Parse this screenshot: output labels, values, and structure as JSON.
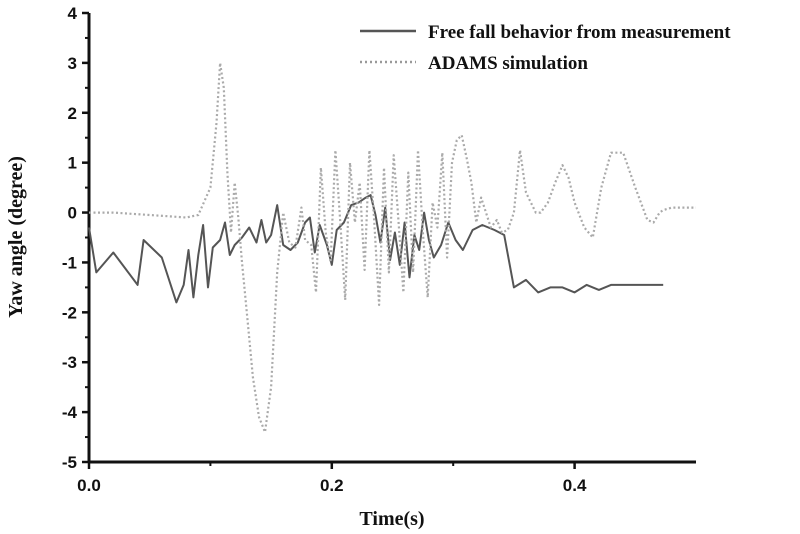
{
  "chart_data": {
    "type": "line",
    "xlabel": "Time(s)",
    "ylabel": "Yaw angle (degree)",
    "xlim": [
      0.0,
      0.5
    ],
    "ylim": [
      -5,
      4
    ],
    "x_ticks": [
      "0.0",
      "0.2",
      "0.4"
    ],
    "y_ticks": [
      "4",
      "3",
      "2",
      "1",
      "0",
      "-1",
      "-2",
      "-3",
      "-4",
      "-5"
    ],
    "grid": false,
    "legend_position": "top-right",
    "series": [
      {
        "name": "Free fall behavior from measurement",
        "style": "solid",
        "color": "#555555",
        "x": [
          0.0,
          0.006,
          0.02,
          0.04,
          0.045,
          0.06,
          0.072,
          0.078,
          0.082,
          0.086,
          0.09,
          0.094,
          0.098,
          0.102,
          0.108,
          0.112,
          0.116,
          0.12,
          0.126,
          0.132,
          0.138,
          0.142,
          0.146,
          0.15,
          0.155,
          0.16,
          0.166,
          0.172,
          0.178,
          0.182,
          0.186,
          0.19,
          0.196,
          0.2,
          0.204,
          0.21,
          0.216,
          0.222,
          0.228,
          0.232,
          0.236,
          0.24,
          0.244,
          0.248,
          0.252,
          0.256,
          0.26,
          0.264,
          0.268,
          0.272,
          0.276,
          0.28,
          0.284,
          0.29,
          0.296,
          0.302,
          0.308,
          0.316,
          0.324,
          0.334,
          0.342,
          0.35,
          0.36,
          0.37,
          0.38,
          0.39,
          0.4,
          0.41,
          0.42,
          0.43,
          0.44,
          0.45,
          0.46,
          0.47,
          0.473
        ],
        "y": [
          -0.3,
          -1.2,
          -0.8,
          -1.45,
          -0.55,
          -0.9,
          -1.8,
          -1.45,
          -0.75,
          -1.7,
          -0.85,
          -0.25,
          -1.5,
          -0.7,
          -0.55,
          -0.2,
          -0.85,
          -0.65,
          -0.5,
          -0.3,
          -0.6,
          -0.15,
          -0.6,
          -0.45,
          0.15,
          -0.65,
          -0.75,
          -0.6,
          -0.2,
          -0.1,
          -0.8,
          -0.25,
          -0.65,
          -1.05,
          -0.35,
          -0.2,
          0.15,
          0.2,
          0.3,
          0.35,
          -0.05,
          -0.6,
          0.1,
          -0.95,
          -0.4,
          -1.05,
          -0.2,
          -1.3,
          -0.45,
          -0.75,
          0.0,
          -0.55,
          -0.9,
          -0.65,
          -0.2,
          -0.55,
          -0.75,
          -0.35,
          -0.25,
          -0.35,
          -0.45,
          -1.5,
          -1.35,
          -1.6,
          -1.5,
          -1.5,
          -1.6,
          -1.45,
          -1.55,
          -1.45,
          -1.45,
          -1.45,
          -1.45,
          -1.45,
          -1.45
        ]
      },
      {
        "name": "ADAMS simulation",
        "style": "dotted",
        "color": "#aaaaaa",
        "x": [
          0.0,
          0.02,
          0.05,
          0.08,
          0.09,
          0.1,
          0.105,
          0.108,
          0.111,
          0.114,
          0.117,
          0.12,
          0.123,
          0.126,
          0.13,
          0.135,
          0.14,
          0.145,
          0.15,
          0.155,
          0.16,
          0.165,
          0.17,
          0.175,
          0.178,
          0.183,
          0.187,
          0.191,
          0.195,
          0.199,
          0.203,
          0.207,
          0.211,
          0.215,
          0.219,
          0.223,
          0.227,
          0.231,
          0.235,
          0.239,
          0.243,
          0.247,
          0.251,
          0.255,
          0.259,
          0.263,
          0.267,
          0.271,
          0.275,
          0.279,
          0.283,
          0.287,
          0.291,
          0.295,
          0.299,
          0.303,
          0.307,
          0.311,
          0.315,
          0.319,
          0.323,
          0.327,
          0.331,
          0.336,
          0.34,
          0.345,
          0.35,
          0.355,
          0.36,
          0.368,
          0.372,
          0.378,
          0.384,
          0.39,
          0.395,
          0.4,
          0.408,
          0.415,
          0.422,
          0.43,
          0.44,
          0.45,
          0.46,
          0.465,
          0.47,
          0.473,
          0.48,
          0.49,
          0.5
        ],
        "y": [
          0.0,
          0.0,
          -0.05,
          -0.1,
          -0.05,
          0.5,
          1.8,
          3.0,
          2.5,
          0.8,
          -0.4,
          0.6,
          -0.1,
          -1.0,
          -2.0,
          -3.3,
          -4.1,
          -4.4,
          -3.5,
          -1.2,
          0.0,
          -0.6,
          -0.7,
          0.1,
          -0.55,
          -0.65,
          -1.6,
          0.9,
          -0.4,
          -1.0,
          1.25,
          -0.2,
          -1.75,
          1.0,
          -0.2,
          0.6,
          -1.15,
          1.25,
          -0.2,
          -1.85,
          0.9,
          -1.2,
          1.15,
          -0.2,
          -1.6,
          0.8,
          -1.2,
          1.25,
          -0.4,
          -1.7,
          0.2,
          -0.3,
          1.2,
          -0.9,
          1.0,
          1.45,
          1.55,
          1.1,
          0.6,
          -0.2,
          0.3,
          0.0,
          -0.3,
          -0.15,
          -0.4,
          -0.35,
          0.0,
          1.25,
          0.4,
          0.0,
          0.0,
          0.2,
          0.6,
          0.95,
          0.7,
          0.2,
          -0.3,
          -0.5,
          0.5,
          1.2,
          1.2,
          0.5,
          -0.15,
          -0.2,
          0.0,
          0.05,
          0.1,
          0.1,
          0.1
        ]
      }
    ]
  }
}
